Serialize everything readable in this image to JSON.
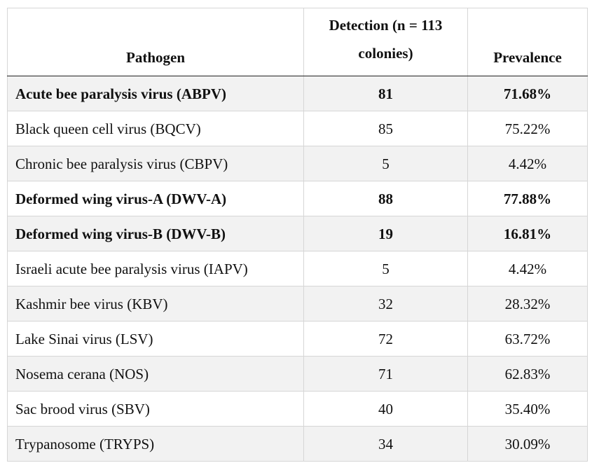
{
  "table": {
    "headers": {
      "pathogen": "Pathogen",
      "detection": "Detection (n = 113 colonies)",
      "prevalence": "Prevalence"
    },
    "rows": [
      {
        "pathogen": "Acute bee paralysis virus (ABPV)",
        "detection": "81",
        "prevalence": "71.68%",
        "bold": true
      },
      {
        "pathogen": "Black queen cell virus (BQCV)",
        "detection": "85",
        "prevalence": "75.22%",
        "bold": false
      },
      {
        "pathogen": "Chronic bee paralysis virus (CBPV)",
        "detection": "5",
        "prevalence": "4.42%",
        "bold": false
      },
      {
        "pathogen": "Deformed wing virus-A (DWV-A)",
        "detection": "88",
        "prevalence": "77.88%",
        "bold": true
      },
      {
        "pathogen": "Deformed wing virus-B (DWV-B)",
        "detection": "19",
        "prevalence": "16.81%",
        "bold": true
      },
      {
        "pathogen": "Israeli acute bee paralysis virus (IAPV)",
        "detection": "5",
        "prevalence": "4.42%",
        "bold": false
      },
      {
        "pathogen": "Kashmir bee virus (KBV)",
        "detection": "32",
        "prevalence": "28.32%",
        "bold": false
      },
      {
        "pathogen": "Lake Sinai virus (LSV)",
        "detection": "72",
        "prevalence": "63.72%",
        "bold": false
      },
      {
        "pathogen": "Nosema cerana (NOS)",
        "detection": "71",
        "prevalence": "62.83%",
        "bold": false
      },
      {
        "pathogen": "Sac brood virus (SBV)",
        "detection": "40",
        "prevalence": "35.40%",
        "bold": false
      },
      {
        "pathogen": "Trypanosome (TRYPS)",
        "detection": "34",
        "prevalence": "30.09%",
        "bold": false
      }
    ]
  }
}
